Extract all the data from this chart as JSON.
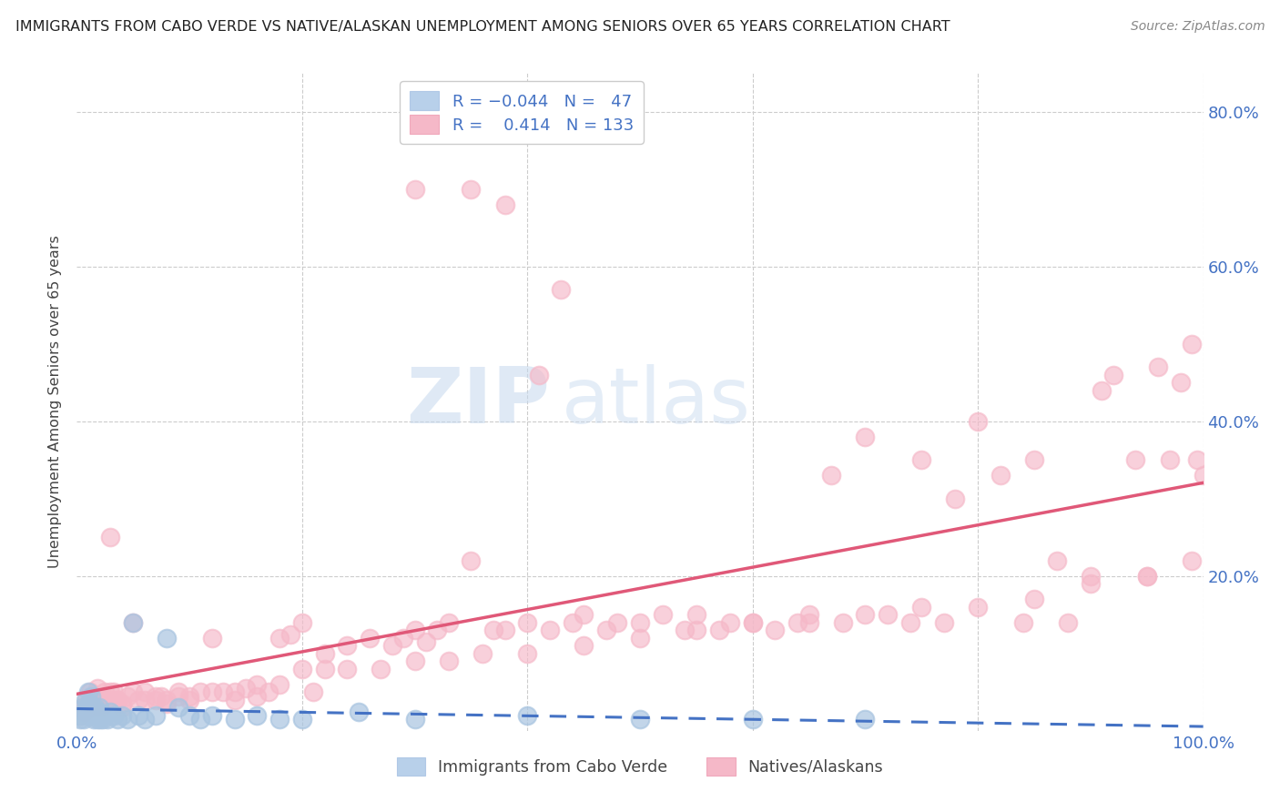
{
  "title": "IMMIGRANTS FROM CABO VERDE VS NATIVE/ALASKAN UNEMPLOYMENT AMONG SENIORS OVER 65 YEARS CORRELATION CHART",
  "source": "Source: ZipAtlas.com",
  "ylabel": "Unemployment Among Seniors over 65 years",
  "xlim": [
    0,
    100
  ],
  "ylim": [
    0,
    85
  ],
  "blue_color": "#a8c4e0",
  "pink_color": "#f5b8c8",
  "trend_blue_color": "#4472c4",
  "trend_pink_color": "#e05878",
  "cabo_verde_x": [
    0.3,
    0.4,
    0.5,
    0.6,
    0.7,
    0.8,
    0.9,
    1.0,
    1.1,
    1.2,
    1.3,
    1.4,
    1.5,
    1.6,
    1.7,
    1.8,
    1.9,
    2.0,
    2.1,
    2.2,
    2.3,
    2.5,
    2.7,
    3.0,
    3.3,
    3.6,
    4.0,
    4.5,
    5.0,
    5.5,
    6.0,
    7.0,
    8.0,
    9.0,
    10.0,
    11.0,
    12.0,
    14.0,
    16.0,
    18.0,
    20.0,
    25.0,
    30.0,
    40.0,
    50.0,
    60.0,
    70.0
  ],
  "cabo_verde_y": [
    1.5,
    2.0,
    3.0,
    1.5,
    2.5,
    4.0,
    3.0,
    5.0,
    2.0,
    3.5,
    4.5,
    2.5,
    1.5,
    3.0,
    2.0,
    1.5,
    2.5,
    3.0,
    1.5,
    2.0,
    1.5,
    2.0,
    1.5,
    2.5,
    2.0,
    1.5,
    2.0,
    1.5,
    14.0,
    2.0,
    1.5,
    2.0,
    12.0,
    3.0,
    2.0,
    1.5,
    2.0,
    1.5,
    2.0,
    1.5,
    1.5,
    2.5,
    1.5,
    2.0,
    1.5,
    1.5,
    1.5
  ],
  "natives_x": [
    0.3,
    0.5,
    0.7,
    0.9,
    1.0,
    1.2,
    1.4,
    1.6,
    1.8,
    2.0,
    2.2,
    2.5,
    2.8,
    3.0,
    3.3,
    3.6,
    4.0,
    4.5,
    5.0,
    5.5,
    6.0,
    7.0,
    7.5,
    8.0,
    9.0,
    10.0,
    11.0,
    12.0,
    13.0,
    14.0,
    15.0,
    16.0,
    17.0,
    18.0,
    19.0,
    20.0,
    21.0,
    22.0,
    24.0,
    26.0,
    28.0,
    29.0,
    30.0,
    31.0,
    32.0,
    33.0,
    35.0,
    37.0,
    38.0,
    40.0,
    42.0,
    44.0,
    45.0,
    47.0,
    48.0,
    50.0,
    52.0,
    54.0,
    55.0,
    57.0,
    58.0,
    60.0,
    62.0,
    64.0,
    65.0,
    67.0,
    68.0,
    70.0,
    72.0,
    74.0,
    75.0,
    77.0,
    78.0,
    80.0,
    82.0,
    84.0,
    85.0,
    87.0,
    88.0,
    90.0,
    91.0,
    92.0,
    94.0,
    95.0,
    96.0,
    97.0,
    98.0,
    99.0,
    99.5,
    100.0,
    0.5,
    1.0,
    1.5,
    2.0,
    2.5,
    3.0,
    3.5,
    4.0,
    5.0,
    6.0,
    7.0,
    8.0,
    9.0,
    10.0,
    12.0,
    14.0,
    16.0,
    18.0,
    20.0,
    22.0,
    24.0,
    27.0,
    30.0,
    33.0,
    36.0,
    40.0,
    45.0,
    50.0,
    55.0,
    60.0,
    65.0,
    70.0,
    75.0,
    80.0,
    85.0,
    90.0,
    95.0,
    99.0,
    30.0,
    35.0,
    38.0,
    41.0,
    43.0
  ],
  "natives_y": [
    2.0,
    3.0,
    2.5,
    4.0,
    3.0,
    5.0,
    4.0,
    3.0,
    5.5,
    4.0,
    3.0,
    5.0,
    4.0,
    25.0,
    5.0,
    4.0,
    3.0,
    4.5,
    14.0,
    4.0,
    5.0,
    4.0,
    4.5,
    3.5,
    5.0,
    4.0,
    5.0,
    12.0,
    5.0,
    4.0,
    5.5,
    4.5,
    5.0,
    12.0,
    12.5,
    14.0,
    5.0,
    10.0,
    11.0,
    12.0,
    11.0,
    12.0,
    13.0,
    11.5,
    13.0,
    14.0,
    22.0,
    13.0,
    13.0,
    14.0,
    13.0,
    14.0,
    15.0,
    13.0,
    14.0,
    14.0,
    15.0,
    13.0,
    15.0,
    13.0,
    14.0,
    14.0,
    13.0,
    14.0,
    15.0,
    33.0,
    14.0,
    38.0,
    15.0,
    14.0,
    35.0,
    14.0,
    30.0,
    40.0,
    33.0,
    14.0,
    35.0,
    22.0,
    14.0,
    20.0,
    44.0,
    46.0,
    35.0,
    20.0,
    47.0,
    35.0,
    45.0,
    50.0,
    35.0,
    33.0,
    3.0,
    3.0,
    3.5,
    4.0,
    3.5,
    5.0,
    4.0,
    3.5,
    5.0,
    4.0,
    4.5,
    4.0,
    4.5,
    4.5,
    5.0,
    5.0,
    6.0,
    6.0,
    8.0,
    8.0,
    8.0,
    8.0,
    9.0,
    9.0,
    10.0,
    10.0,
    11.0,
    12.0,
    13.0,
    14.0,
    14.0,
    15.0,
    16.0,
    16.0,
    17.0,
    19.0,
    20.0,
    22.0,
    70.0,
    70.0,
    68.0,
    46.0,
    57.0
  ]
}
